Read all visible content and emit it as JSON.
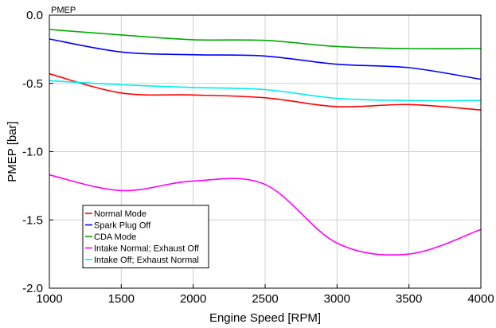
{
  "chart_data": {
    "type": "line",
    "title": "",
    "corner_label": "PMEP",
    "xlabel": "Engine Speed [RPM]",
    "ylabel": "PMEP [bar]",
    "xlim": [
      1000,
      4000
    ],
    "ylim": [
      -2.0,
      0.0
    ],
    "xticks": [
      1000,
      1500,
      2000,
      2500,
      3000,
      3500,
      4000
    ],
    "yticks": [
      0.0,
      -0.5,
      -1.0,
      -1.5,
      -2.0
    ],
    "xtick_labels": [
      "1000",
      "1500",
      "2000",
      "2500",
      "3000",
      "3500",
      "4000"
    ],
    "ytick_labels": [
      "0.0",
      "-0.5",
      "-1.0",
      "-1.5",
      "-2.0"
    ],
    "grid": true,
    "legend_position": "bottom-left",
    "series": [
      {
        "name": "Normal Mode",
        "color": "#ff0000",
        "x": [
          1000,
          1500,
          2000,
          2500,
          3000,
          3500,
          4000
        ],
        "y": [
          -0.43,
          -0.57,
          -0.585,
          -0.605,
          -0.67,
          -0.655,
          -0.695
        ]
      },
      {
        "name": "Spark Plug Off",
        "color": "#0000ff",
        "x": [
          1000,
          1500,
          2000,
          2500,
          3000,
          3500,
          4000
        ],
        "y": [
          -0.175,
          -0.27,
          -0.29,
          -0.3,
          -0.36,
          -0.385,
          -0.47
        ]
      },
      {
        "name": "CDA Mode",
        "color": "#00aa00",
        "x": [
          1000,
          1500,
          2000,
          2500,
          3000,
          3500,
          4000
        ],
        "y": [
          -0.105,
          -0.145,
          -0.18,
          -0.185,
          -0.23,
          -0.245,
          -0.245
        ]
      },
      {
        "name": "Intake Normal; Exhaust Off",
        "color": "#ff00ff",
        "x": [
          1000,
          1500,
          2000,
          2500,
          3000,
          3500,
          4000
        ],
        "y": [
          -1.17,
          -1.285,
          -1.215,
          -1.24,
          -1.67,
          -1.75,
          -1.57
        ]
      },
      {
        "name": "Intake Off; Exhaust Normal",
        "color": "#00eeee",
        "x": [
          1000,
          1500,
          2000,
          2500,
          3000,
          3500,
          4000
        ],
        "y": [
          -0.48,
          -0.51,
          -0.53,
          -0.545,
          -0.61,
          -0.625,
          -0.625
        ]
      }
    ]
  }
}
